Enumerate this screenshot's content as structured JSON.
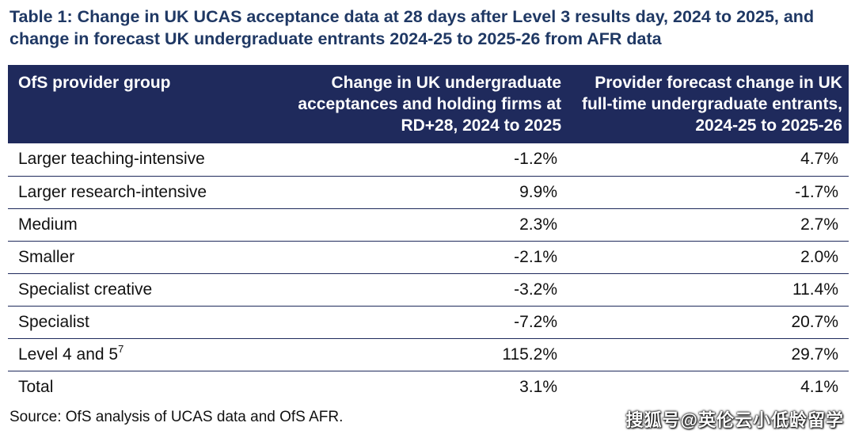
{
  "title": "Table 1: Change in UK UCAS acceptance data at 28 days after Level 3 results day, 2024 to 2025, and change in forecast UK undergraduate entrants 2024-25 to 2025-26 from AFR data",
  "table": {
    "headers": [
      "OfS provider group",
      "Change in UK undergraduate acceptances and holding firms at RD+28, 2024 to 2025",
      "Provider forecast change in UK full-time undergraduate entrants, 2024-25 to 2025-26"
    ],
    "rows": [
      {
        "group": "Larger teaching-intensive",
        "sup": "",
        "acceptances": "-1.2%",
        "forecast": "4.7%"
      },
      {
        "group": "Larger research-intensive",
        "sup": "",
        "acceptances": "9.9%",
        "forecast": "-1.7%"
      },
      {
        "group": "Medium",
        "sup": "",
        "acceptances": "2.3%",
        "forecast": "2.7%"
      },
      {
        "group": "Smaller",
        "sup": "",
        "acceptances": "-2.1%",
        "forecast": "2.0%"
      },
      {
        "group": "Specialist creative",
        "sup": "",
        "acceptances": "-3.2%",
        "forecast": "11.4%"
      },
      {
        "group": "Specialist",
        "sup": "",
        "acceptances": "-7.2%",
        "forecast": "20.7%"
      },
      {
        "group": "Level 4 and 5",
        "sup": "7",
        "acceptances": "115.2%",
        "forecast": "29.7%"
      },
      {
        "group": "Total",
        "sup": "",
        "acceptances": "3.1%",
        "forecast": "4.1%"
      }
    ]
  },
  "source": "Source: OfS analysis of UCAS data and OfS AFR.",
  "watermark": "搜狐号@英伦云小低龄留学",
  "colors": {
    "header_bg": "#1f2a5c",
    "title": "#1f3864"
  }
}
